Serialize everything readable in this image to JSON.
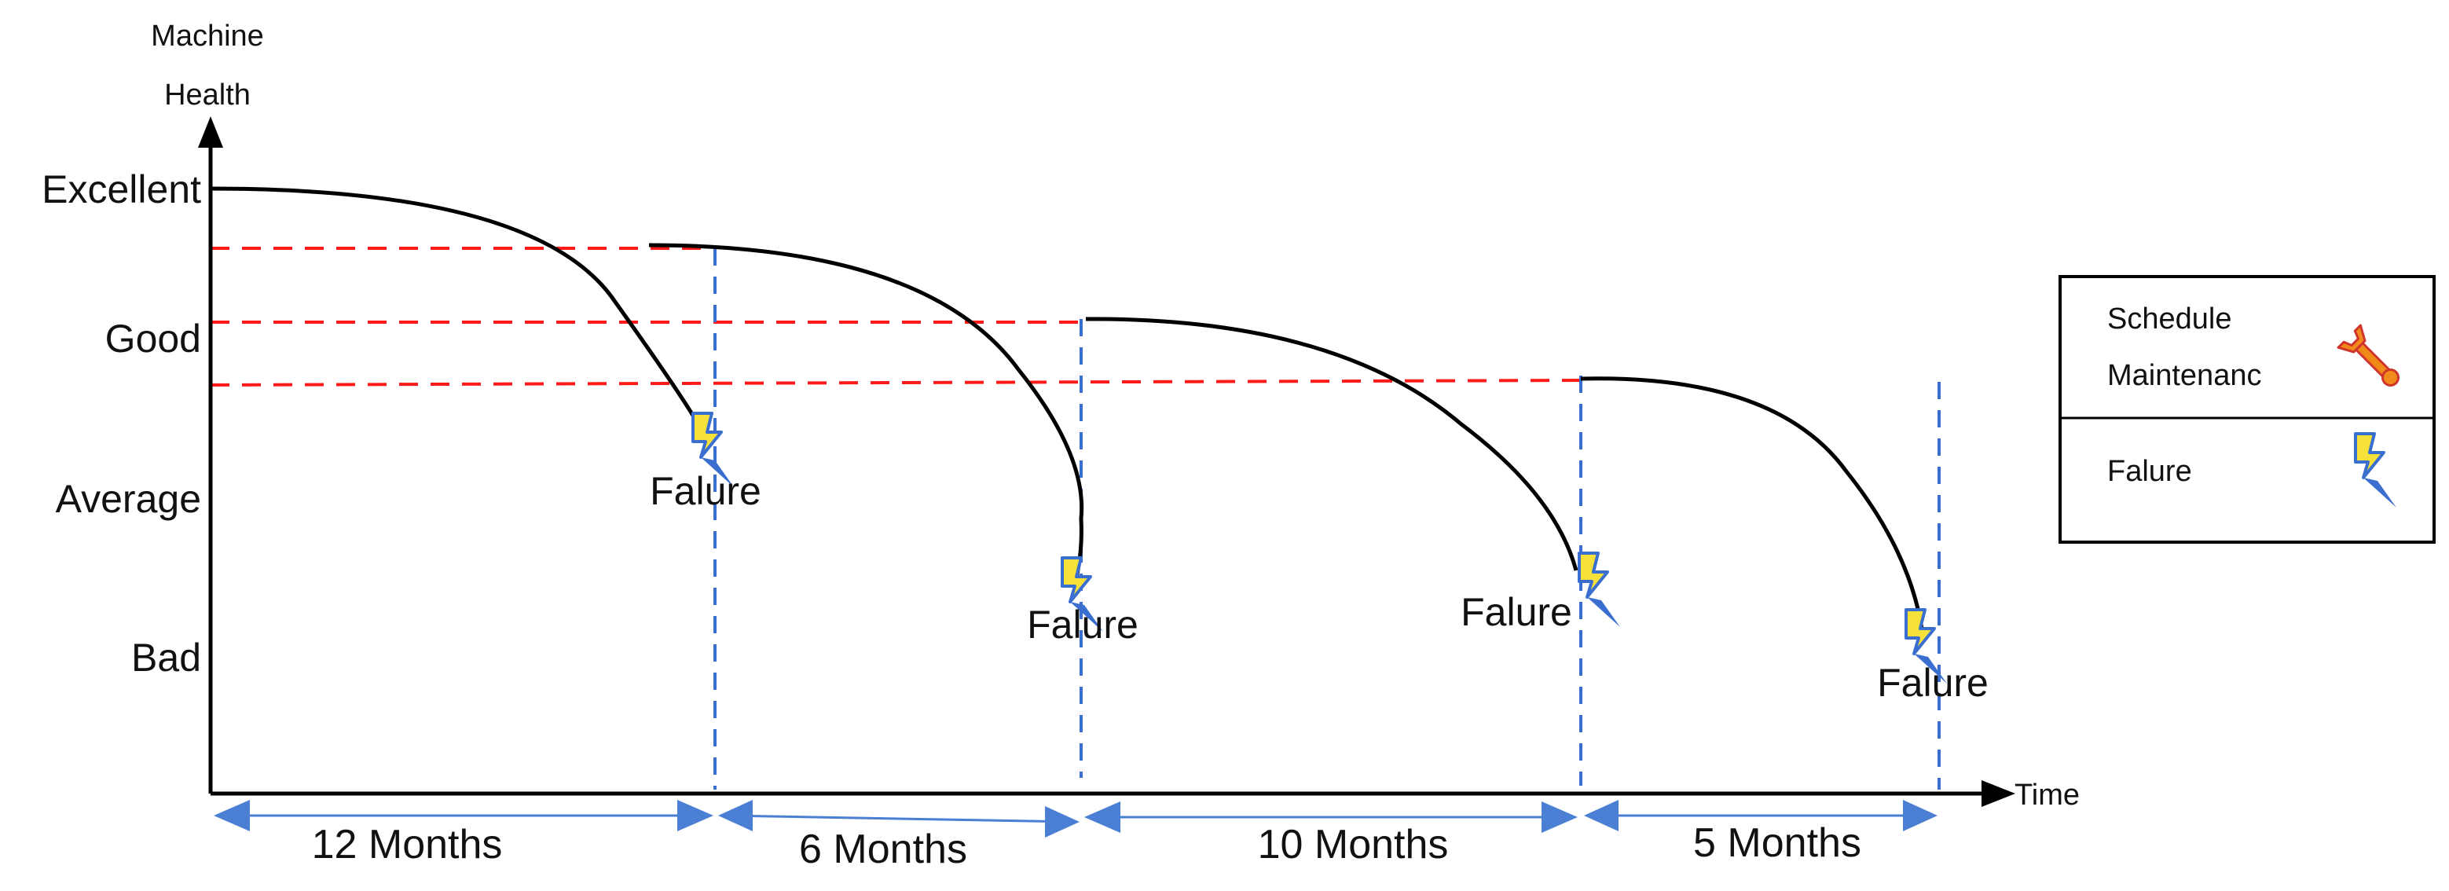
{
  "axes": {
    "y_title_line1": "Machine",
    "y_title_line2": "Health",
    "x_title": "Time",
    "y_levels": [
      "Excellent",
      "Good",
      "Average",
      "Bad"
    ]
  },
  "cycles": [
    {
      "failure_label": "Falure",
      "duration_label": "12 Months"
    },
    {
      "failure_label": "Falure",
      "duration_label": "6 Months"
    },
    {
      "failure_label": "Falure",
      "duration_label": "10 Months"
    },
    {
      "failure_label": "Falure",
      "duration_label": "5 Months"
    }
  ],
  "legend": {
    "maintenance_line1": "Schedule",
    "maintenance_line2": "Maintenanc",
    "failure": "Falure"
  },
  "colors": {
    "curve": "#000000",
    "threshold": "#ff1a1a",
    "divider": "#3a6fd0",
    "arrow": "#4a7fd4",
    "bolt_fill": "#f5e13a",
    "bolt_stroke": "#3a6fd0",
    "wrench": "#f08a1a"
  },
  "icons": {
    "failure_icon": "lightning-bolt-icon",
    "maintenance_icon": "wrench-icon"
  }
}
